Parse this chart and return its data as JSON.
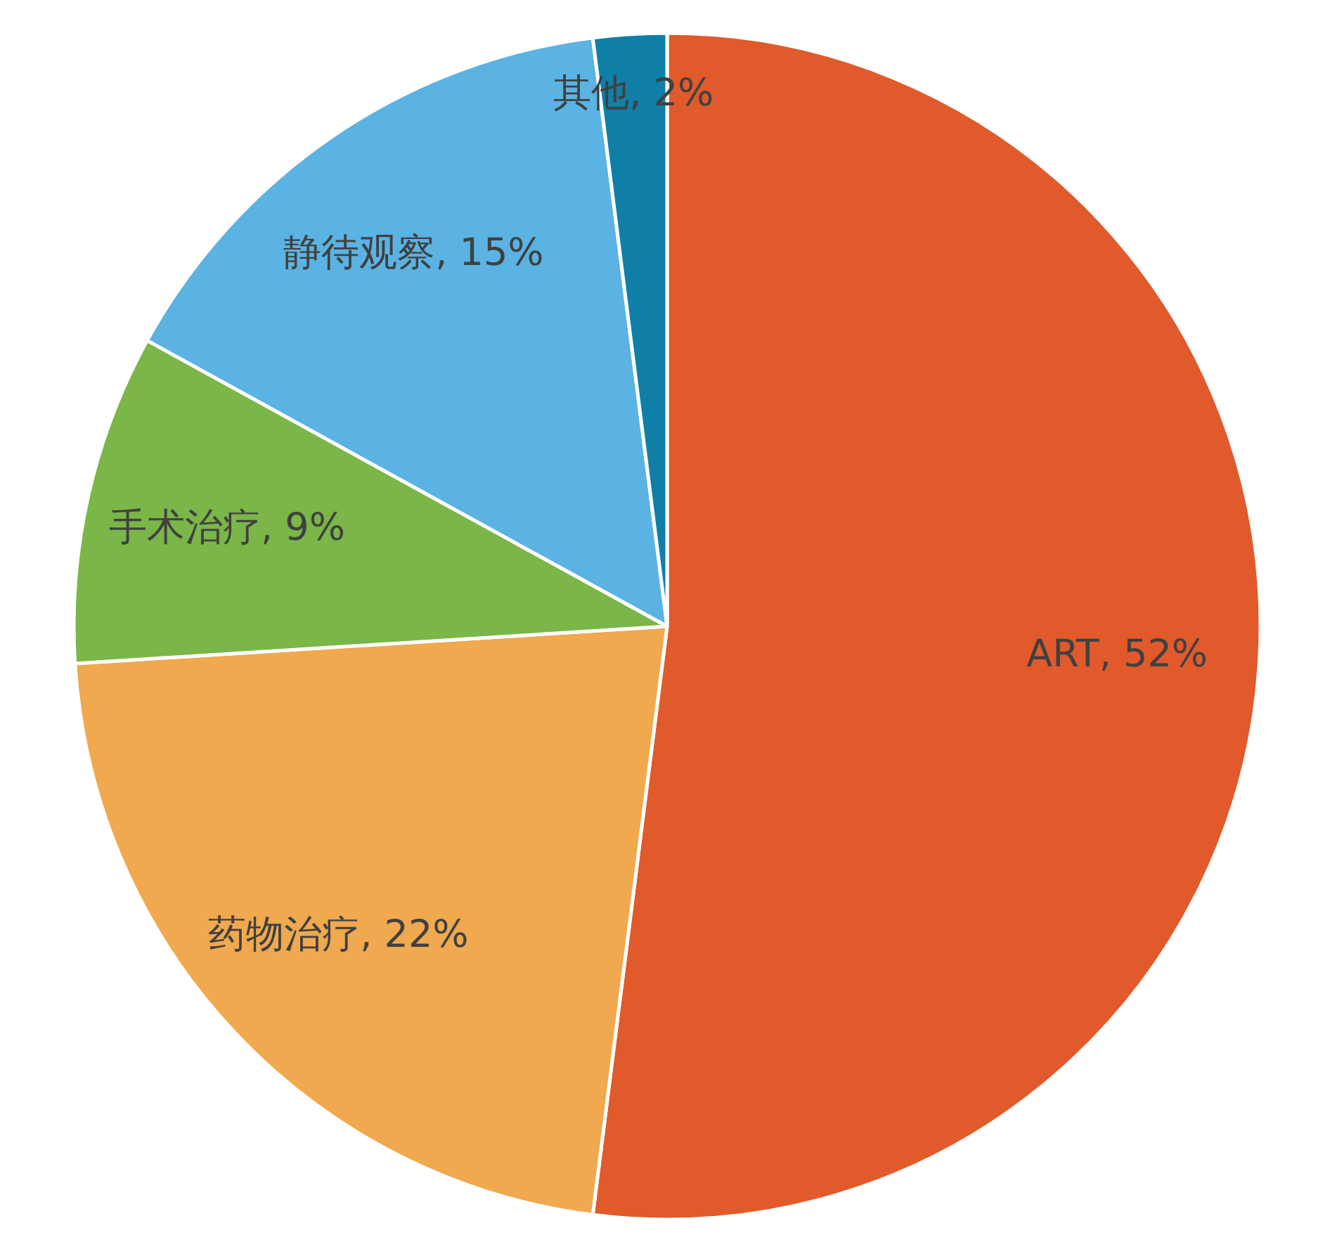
{
  "chart_data": {
    "type": "pie",
    "categories": [
      "ART",
      "药物治疗",
      "手术治疗",
      "静待观察",
      "其他"
    ],
    "values": [
      52,
      22,
      9,
      15,
      2
    ],
    "value_labels": [
      "52%",
      "22%",
      "9%",
      "15%",
      "2%"
    ],
    "colors": [
      "#e05a2b",
      "#f0a94e",
      "#7ab648",
      "#5ab3e2",
      "#0f7fa8"
    ],
    "legend": false
  }
}
